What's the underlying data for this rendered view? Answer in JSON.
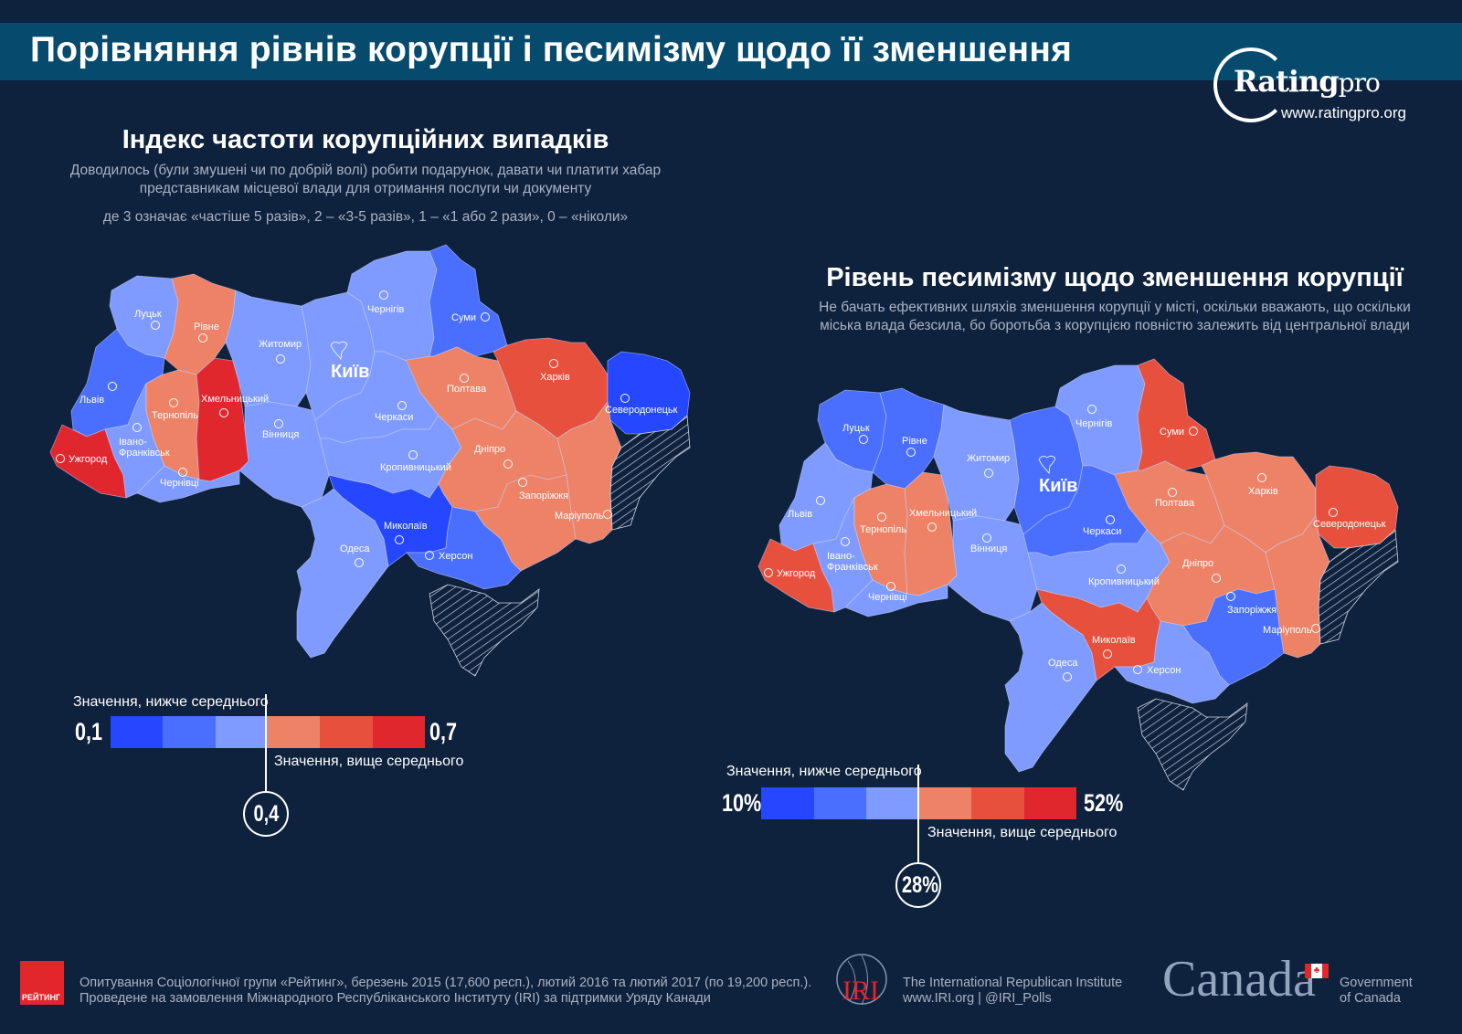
{
  "header": {
    "title": "Порівняння рівнів корупції і песимізму щодо її зменшення"
  },
  "logo": {
    "name": "Rating",
    "suffix": "pro",
    "url": "www.ratingpro.org"
  },
  "colors": {
    "L": "#7f9bff",
    "M": "#4a6fff",
    "D": "#2447ff",
    "S": "#ee8266",
    "O": "#e8503e",
    "R": "#e0272d",
    "background": "#0e213d",
    "header": "#064a6e"
  },
  "map_left": {
    "title": "Індекс частоти корупційних випадків",
    "subtitle1": "Доводилось (були змушені чи по добрій волі) робити подарунок, давати чи платити хабар",
    "subtitle2": "представникам місцевої влади для отримання послуги чи документу",
    "subtitle3": "де 3 означає «частіше 5 разів», 2 – «3-5 разів», 1 – «1 або 2 рази», 0 – «ніколи»",
    "capital": "Київ",
    "categories": {
      "volyn": "L",
      "rivne": "S",
      "lviv": "M",
      "zakarpattia": "R",
      "ivano": "L",
      "ternopil": "S",
      "khmelnytskyi": "R",
      "chernivtsi": "L",
      "zhytomyr": "L",
      "vinnytsia": "L",
      "kyiv": "L",
      "chernihiv": "L",
      "sumy": "M",
      "poltava": "S",
      "kharkiv": "O",
      "luhansk": "D",
      "donetsk": "S",
      "cherkasy": "L",
      "kirovohrad": "L",
      "dnipro": "S",
      "zaporizhzhia": "S",
      "mykolaiv": "D",
      "kherson": "M",
      "odesa": "L"
    },
    "legend": {
      "below": "Значення, нижче середнього",
      "above": "Значення, вище середнього",
      "min": "0,1",
      "max": "0,7",
      "average": "0,4"
    }
  },
  "map_right": {
    "title": "Рівень песимізму щодо зменшення корупції",
    "subtitle1": "Не бачать ефективних шляхів зменшення корупції у місті, оскільки вважають, що оскільки",
    "subtitle2": "міська влада безсила, бо боротьба з корупцією повністю залежить від центральної влади",
    "capital": "Київ",
    "categories": {
      "volyn": "M",
      "rivne": "M",
      "lviv": "L",
      "zakarpattia": "O",
      "ivano": "L",
      "ternopil": "S",
      "khmelnytskyi": "S",
      "chernivtsi": "L",
      "zhytomyr": "L",
      "vinnytsia": "L",
      "kyiv": "M",
      "chernihiv": "L",
      "sumy": "O",
      "poltava": "S",
      "kharkiv": "S",
      "luhansk": "O",
      "donetsk": "S",
      "cherkasy": "M",
      "kirovohrad": "L",
      "dnipro": "S",
      "zaporizhzhia": "M",
      "mykolaiv": "O",
      "kherson": "L",
      "odesa": "L"
    },
    "legend": {
      "below": "Значення, нижче середнього",
      "above": "Значення, вище середнього",
      "min": "10%",
      "max": "52%",
      "average": "28%"
    }
  },
  "cities": {
    "volyn": "Луцьк",
    "rivne": "Рівне",
    "lviv": "Львів",
    "zakarpattia": "Ужгород",
    "ivano1": "Івано-",
    "ivano2": "Франківськ",
    "ternopil": "Тернопіль",
    "khmelnytskyi": "Хмельницький",
    "chernivtsi": "Чернівці",
    "zhytomyr": "Житомир",
    "vinnytsia": "Вінниця",
    "chernihiv": "Чернігів",
    "sumy": "Суми",
    "poltava": "Полтава",
    "kharkiv": "Харків",
    "luhansk": "Северодонецьк",
    "donetsk": "Маріуполь",
    "cherkasy": "Черкаси",
    "kirovohrad": "Кропивницький",
    "dnipro": "Дніпро",
    "zaporizhzhia": "Запоріжжя",
    "mykolaiv": "Миколаїв",
    "kherson": "Херсон",
    "odesa": "Одеса"
  },
  "footer": {
    "rating_logo": "РЕЙТИНГ",
    "line1": "Опитування Соціологічної групи «Рейтинг», березень 2015 (17,600 респ.), лютий 2016 та лютий 2017 (по 19,200 респ.).",
    "line2": "Проведене на замовлення Міжнародного Республіканського Інституту (IRI) за підтримки Уряду Канади",
    "iri_logo": "IRI",
    "iri_name": "The International Republican Institute",
    "iri_links": "www.IRI.org | @IRI_Polls",
    "canada_wordmark": "Canada",
    "gov1": "Government",
    "gov2": "of Canada"
  }
}
